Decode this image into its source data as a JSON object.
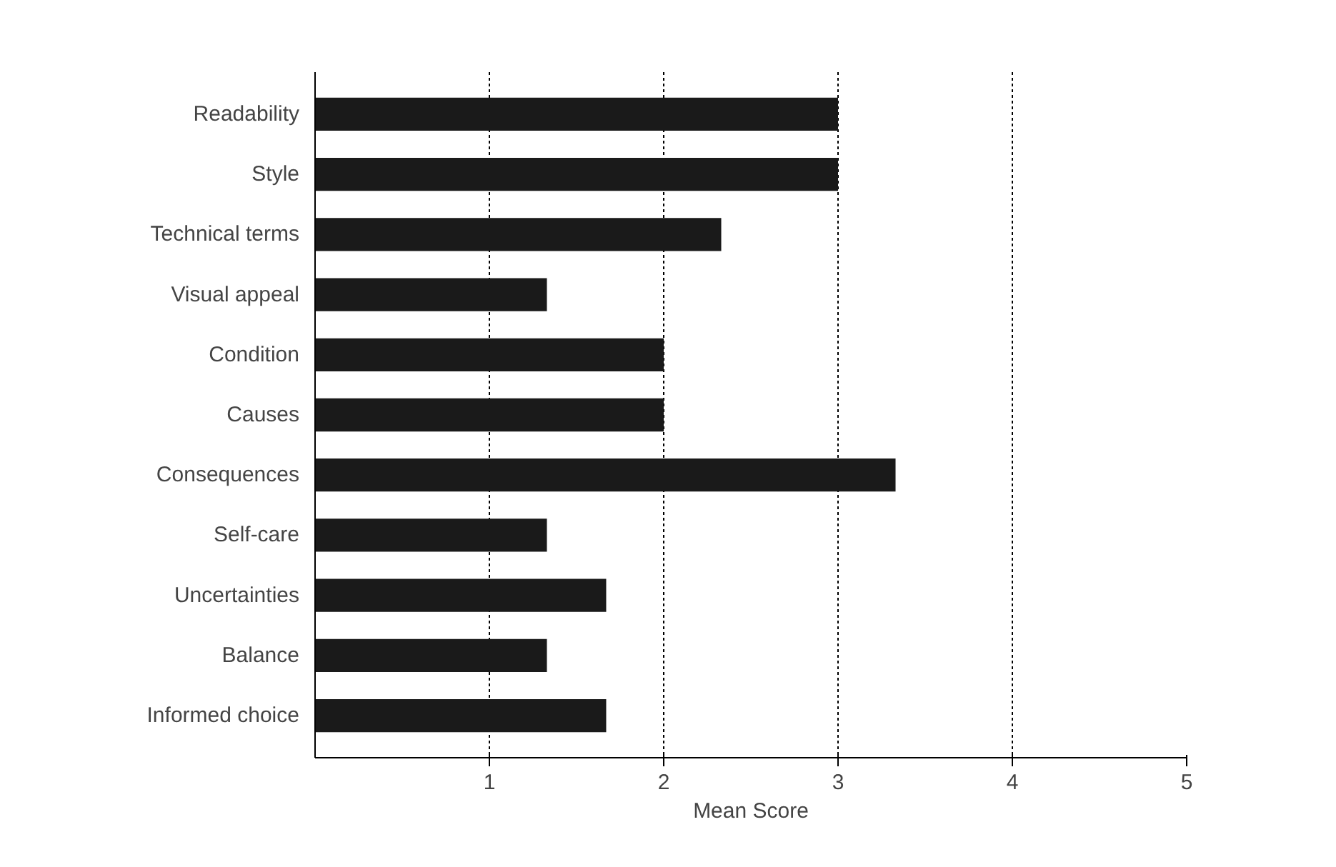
{
  "chart_data": {
    "type": "bar",
    "orientation": "horizontal",
    "xlabel": "Mean Score",
    "categories": [
      "Readability",
      "Style",
      "Technical terms",
      "Visual appeal",
      "Condition",
      "Causes",
      "Consequences",
      "Self-care",
      "Uncertainties",
      "Balance",
      "Informed choice"
    ],
    "values": [
      3,
      3,
      2.33,
      1.33,
      2,
      2,
      3.33,
      1.33,
      1.67,
      1.33,
      1.67
    ],
    "color": "#1a1a1a",
    "xlim": [
      0,
      5
    ],
    "xticks": [
      1,
      2,
      3,
      4,
      5
    ],
    "grid": "x",
    "line_style": "dotted"
  }
}
